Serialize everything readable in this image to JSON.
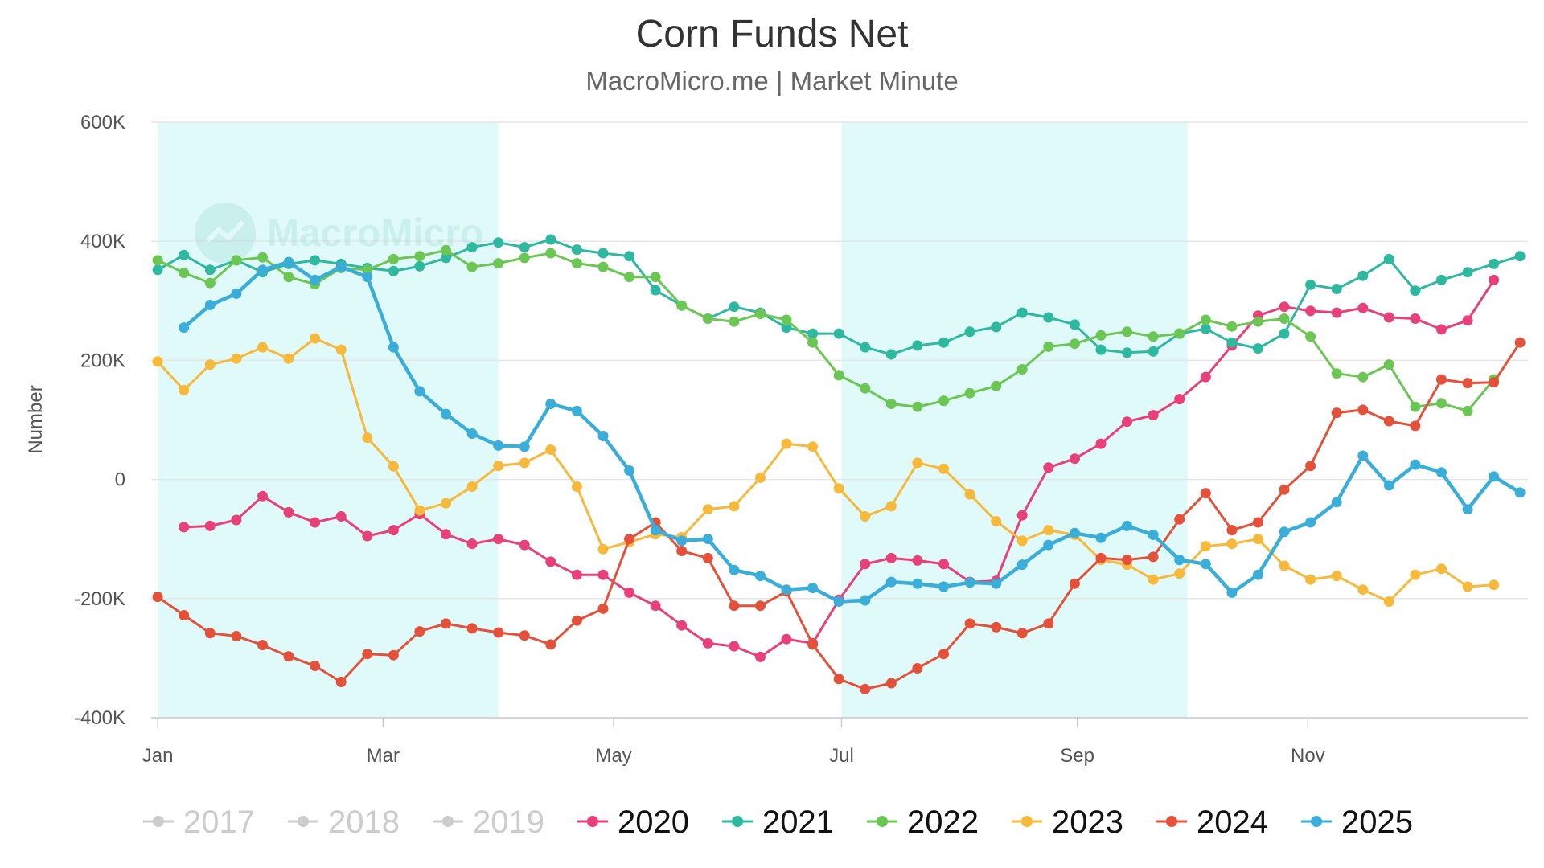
{
  "chart_data": {
    "type": "line",
    "title": "Corn Funds Net",
    "subtitle": "MacroMicro.me | Market Minute",
    "watermark": "MacroMicro",
    "ylabel": "Number",
    "ylim": [
      -400000,
      600000
    ],
    "yticks": [
      {
        "value": 600000,
        "label": "600K"
      },
      {
        "value": 400000,
        "label": "400K"
      },
      {
        "value": 200000,
        "label": "200K"
      },
      {
        "value": 0,
        "label": "0"
      },
      {
        "value": -200000,
        "label": "-200K"
      },
      {
        "value": -400000,
        "label": "-400K"
      }
    ],
    "x_unit": "week of year (1-53)",
    "xlim": [
      0.75,
      53.3
    ],
    "xticks": [
      {
        "value": 1,
        "label": "Jan"
      },
      {
        "value": 9.6,
        "label": "Mar"
      },
      {
        "value": 18.4,
        "label": "May"
      },
      {
        "value": 27.1,
        "label": "Jul"
      },
      {
        "value": 36.1,
        "label": "Sep"
      },
      {
        "value": 44.9,
        "label": "Nov"
      }
    ],
    "shaded_bands": [
      {
        "from": 1,
        "to": 14
      },
      {
        "from": 27.1,
        "to": 40.3
      }
    ],
    "series": [
      {
        "name": "2017",
        "color": "#cccccc",
        "visible": false,
        "start_week": 1,
        "values": []
      },
      {
        "name": "2018",
        "color": "#cccccc",
        "visible": false,
        "start_week": 1,
        "values": []
      },
      {
        "name": "2019",
        "color": "#cccccc",
        "visible": false,
        "start_week": 1,
        "values": []
      },
      {
        "name": "2020",
        "color": "#e8417a",
        "visible": true,
        "start_week": 2,
        "values": [
          -80000,
          -78000,
          -68000,
          -28000,
          -55000,
          -72000,
          -62000,
          -95000,
          -85000,
          -58000,
          -92000,
          -108000,
          -100000,
          -110000,
          -138000,
          -160000,
          -160000,
          -190000,
          -212000,
          -245000,
          -275000,
          -280000,
          -298000,
          -268000,
          -275000,
          -202000,
          -142000,
          -132000,
          -136000,
          -142000,
          -172000,
          -170000,
          -60000,
          20000,
          35000,
          60000,
          97000,
          108000,
          135000,
          172000,
          225000,
          275000,
          290000,
          283000,
          280000,
          288000,
          272000,
          270000,
          252000,
          267000,
          335000
        ]
      },
      {
        "name": "2021",
        "color": "#2fb8a0",
        "visible": true,
        "start_week": 1,
        "values": [
          352000,
          377000,
          352000,
          368000,
          348000,
          362000,
          368000,
          362000,
          355000,
          350000,
          358000,
          372000,
          390000,
          398000,
          390000,
          403000,
          386000,
          380000,
          375000,
          318000,
          292000,
          270000,
          290000,
          280000,
          255000,
          245000,
          245000,
          222000,
          210000,
          225000,
          230000,
          248000,
          256000,
          280000,
          272000,
          260000,
          218000,
          213000,
          215000,
          245000,
          253000,
          230000,
          220000,
          245000,
          327000,
          320000,
          342000,
          370000,
          317000,
          335000,
          348000,
          362000,
          375000
        ]
      },
      {
        "name": "2022",
        "color": "#6cc654",
        "visible": true,
        "start_week": 1,
        "values": [
          368000,
          347000,
          330000,
          368000,
          373000,
          340000,
          328000,
          355000,
          352000,
          370000,
          375000,
          385000,
          357000,
          363000,
          372000,
          380000,
          363000,
          357000,
          340000,
          340000,
          292000,
          270000,
          265000,
          278000,
          268000,
          230000,
          175000,
          153000,
          127000,
          122000,
          132000,
          145000,
          157000,
          185000,
          223000,
          228000,
          242000,
          248000,
          240000,
          245000,
          268000,
          257000,
          265000,
          270000,
          240000,
          178000,
          172000,
          193000,
          122000,
          128000,
          115000,
          168000
        ]
      },
      {
        "name": "2023",
        "color": "#f6b93b",
        "visible": true,
        "start_week": 1,
        "values": [
          198000,
          150000,
          193000,
          203000,
          222000,
          203000,
          237000,
          218000,
          70000,
          22000,
          -52000,
          -40000,
          -12000,
          23000,
          28000,
          50000,
          -12000,
          -117000,
          -105000,
          -92000,
          -97000,
          -50000,
          -45000,
          3000,
          60000,
          55000,
          -15000,
          -62000,
          -45000,
          28000,
          18000,
          -25000,
          -70000,
          -103000,
          -85000,
          -93000,
          -135000,
          -143000,
          -168000,
          -158000,
          -112000,
          -108000,
          -100000,
          -145000,
          -168000,
          -162000,
          -185000,
          -205000,
          -160000,
          -150000,
          -180000,
          -177000
        ]
      },
      {
        "name": "2024",
        "color": "#e4513a",
        "visible": true,
        "start_week": 1,
        "values": [
          -197000,
          -228000,
          -258000,
          -263000,
          -278000,
          -297000,
          -313000,
          -340000,
          -293000,
          -295000,
          -255000,
          -242000,
          -250000,
          -257000,
          -262000,
          -277000,
          -237000,
          -217000,
          -100000,
          -72000,
          -120000,
          -132000,
          -212000,
          -212000,
          -188000,
          -277000,
          -335000,
          -352000,
          -342000,
          -317000,
          -293000,
          -242000,
          -248000,
          -258000,
          -242000,
          -175000,
          -132000,
          -135000,
          -130000,
          -67000,
          -23000,
          -85000,
          -72000,
          -17000,
          23000,
          112000,
          117000,
          98000,
          90000,
          168000,
          162000,
          163000,
          230000
        ]
      },
      {
        "name": "2025",
        "color": "#3aaed8",
        "visible": true,
        "start_week": 2,
        "values": [
          255000,
          293000,
          312000,
          352000,
          365000,
          335000,
          357000,
          340000,
          222000,
          148000,
          110000,
          77000,
          57000,
          55000,
          127000,
          115000,
          73000,
          15000,
          -85000,
          -103000,
          -100000,
          -152000,
          -162000,
          -185000,
          -182000,
          -205000,
          -203000,
          -172000,
          -175000,
          -180000,
          -173000,
          -175000,
          -143000,
          -110000,
          -90000,
          -98000,
          -78000,
          -93000,
          -135000,
          -142000,
          -190000,
          -160000,
          -88000,
          -72000,
          -38000,
          40000,
          -10000,
          25000,
          12000,
          -50000,
          5000,
          -22000
        ]
      }
    ]
  }
}
